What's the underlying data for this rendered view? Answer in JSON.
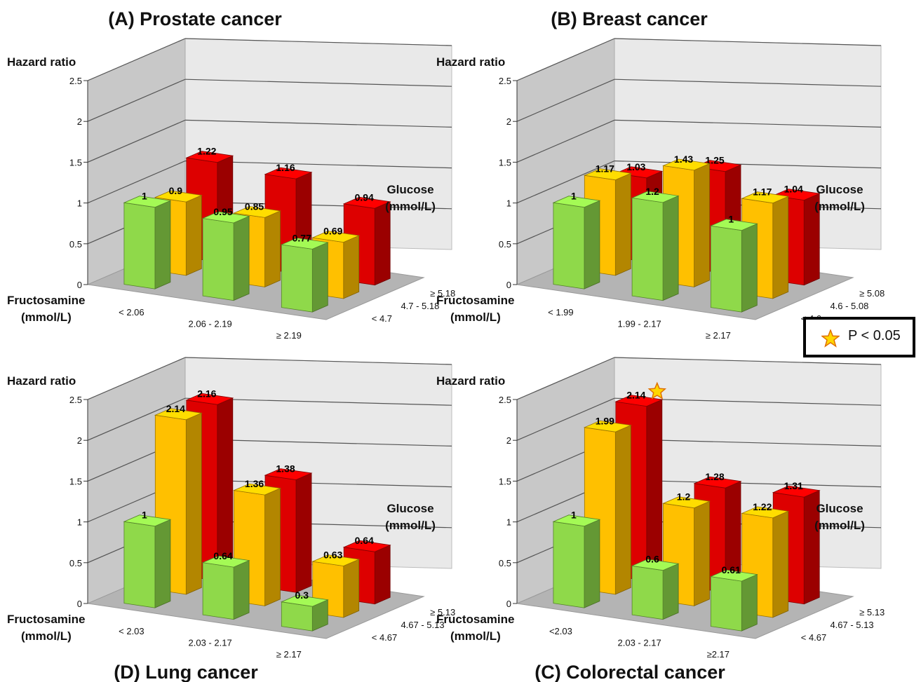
{
  "legend": {
    "text": "P < 0.05",
    "icon": "star-icon"
  },
  "colors": {
    "green": "#8fd94a",
    "orange": "#ffc000",
    "red": "#dd0000",
    "wall": "#c8c8c8",
    "floor": "#b4b4b4",
    "star": "#ffd700"
  },
  "chart_data": [
    {
      "type": "bar",
      "title": "(A) Prostate cancer",
      "ylabel": "Hazard ratio",
      "xlabel": "Fructosamine (mmol/L)",
      "zlabel": "Glucose (mmol/L)",
      "yticks": [
        "0",
        "0.5",
        "1",
        "1.5",
        "2",
        "2.5"
      ],
      "ylim": [
        0,
        2.5
      ],
      "categories": [
        "< 2.06",
        "2.06 - 2.19",
        "≥ 2.19"
      ],
      "series": [
        {
          "name": "< 4.7",
          "values": [
            1,
            0.95,
            0.77
          ],
          "labels": [
            "1",
            "0.95",
            "0.77"
          ],
          "significant": [
            false,
            false,
            false
          ]
        },
        {
          "name": "4.7 - 5.18",
          "values": [
            0.9,
            0.85,
            0.69
          ],
          "labels": [
            "0.9",
            "0.85",
            "0.69"
          ],
          "significant": [
            false,
            false,
            false
          ]
        },
        {
          "name": "≥ 5.18",
          "values": [
            1.22,
            1.16,
            0.94
          ],
          "labels": [
            "1.22",
            "1.16",
            "0.94"
          ],
          "significant": [
            false,
            false,
            false
          ]
        }
      ]
    },
    {
      "type": "bar",
      "title": "(B) Breast cancer",
      "ylabel": "Hazard ratio",
      "xlabel": "Fructosamine (mmol/L)",
      "zlabel": "Glucose (mmol/L)",
      "yticks": [
        "0",
        "0.5",
        "1",
        "1.5",
        "2",
        "2.5"
      ],
      "ylim": [
        0,
        2.5
      ],
      "categories": [
        "< 1.99",
        "1.99 - 2.17",
        "≥ 2.17"
      ],
      "series": [
        {
          "name": "< 4.6",
          "values": [
            1,
            1.2,
            1
          ],
          "labels": [
            "1",
            "1.2",
            "1"
          ],
          "significant": [
            false,
            false,
            false
          ]
        },
        {
          "name": "4.6 - 5.08",
          "values": [
            1.17,
            1.43,
            1.17
          ],
          "labels": [
            "1.17",
            "1.43",
            "1.17"
          ],
          "significant": [
            false,
            false,
            false
          ]
        },
        {
          "name": "≥ 5.08",
          "values": [
            1.03,
            1.25,
            1.04
          ],
          "labels": [
            "1.03",
            "1.25",
            "1.04"
          ],
          "significant": [
            false,
            false,
            false
          ]
        }
      ]
    },
    {
      "type": "bar",
      "title": "(D) Lung cancer",
      "ylabel": "Hazard ratio",
      "xlabel": "Fructosamine (mmol/L)",
      "zlabel": "Glucose (mmol/L)",
      "yticks": [
        "0",
        "0.5",
        "1",
        "1.5",
        "2",
        "2.5"
      ],
      "ylim": [
        0,
        2.5
      ],
      "categories": [
        "< 2.03",
        "2.03 - 2.17",
        "≥ 2.17"
      ],
      "series": [
        {
          "name": "< 4.67",
          "values": [
            1,
            0.64,
            0.3
          ],
          "labels": [
            "1",
            "0.64",
            "0.3"
          ],
          "significant": [
            false,
            false,
            false
          ]
        },
        {
          "name": "4.67 - 5.13",
          "values": [
            2.14,
            1.36,
            0.63
          ],
          "labels": [
            "2.14",
            "1.36",
            "0.63"
          ],
          "significant": [
            false,
            false,
            false
          ]
        },
        {
          "name": "≥ 5.13",
          "values": [
            2.16,
            1.38,
            0.64
          ],
          "labels": [
            "2.16",
            "1.38",
            "0.64"
          ],
          "significant": [
            false,
            false,
            false
          ]
        }
      ]
    },
    {
      "type": "bar",
      "title": "(C) Colorectal cancer",
      "ylabel": "Hazard ratio",
      "xlabel": "Fructosamine (mmol/L)",
      "zlabel": "Glucose (mmol/L)",
      "yticks": [
        "0",
        "0.5",
        "1",
        "1.5",
        "2",
        "2.5"
      ],
      "ylim": [
        0,
        2.5
      ],
      "categories": [
        "<2.03",
        "2.03 - 2.17",
        "≥2.17"
      ],
      "series": [
        {
          "name": "< 4.67",
          "values": [
            1,
            0.6,
            0.61
          ],
          "labels": [
            "1",
            "0.6",
            "0.61"
          ],
          "significant": [
            false,
            false,
            false
          ]
        },
        {
          "name": "4.67 - 5.13",
          "values": [
            1.99,
            1.2,
            1.22
          ],
          "labels": [
            "1.99",
            "1.2",
            "1.22"
          ],
          "significant": [
            false,
            false,
            false
          ]
        },
        {
          "name": "≥ 5.13",
          "values": [
            2.14,
            1.28,
            1.31
          ],
          "labels": [
            "2.14",
            "1.28",
            "1.31"
          ],
          "significant": [
            true,
            false,
            false
          ]
        }
      ]
    }
  ]
}
